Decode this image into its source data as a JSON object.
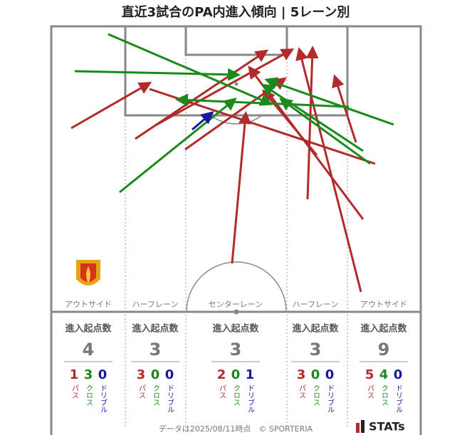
{
  "title": "直近3試合のPA内進入傾向 | 5レーン別",
  "header": "進入起点数",
  "kind_labels": {
    "pass": "パス",
    "cross": "クロス",
    "dribble": "ドリブル"
  },
  "lanes": [
    {
      "name": "アウトサイド",
      "total": 4,
      "pass": 1,
      "cross": 3,
      "dribble": 0
    },
    {
      "name": "ハーフレーン",
      "total": 3,
      "pass": 3,
      "cross": 0,
      "dribble": 0
    },
    {
      "name": "センターレーン",
      "total": 3,
      "pass": 2,
      "cross": 0,
      "dribble": 1
    },
    {
      "name": "ハーフレーン",
      "total": 3,
      "pass": 3,
      "cross": 0,
      "dribble": 0
    },
    {
      "name": "アウトサイド",
      "total": 9,
      "pass": 5,
      "cross": 4,
      "dribble": 0
    }
  ],
  "footer": "データは2025/08/11時点　© SPORTERIA",
  "logo": "STATs"
}
